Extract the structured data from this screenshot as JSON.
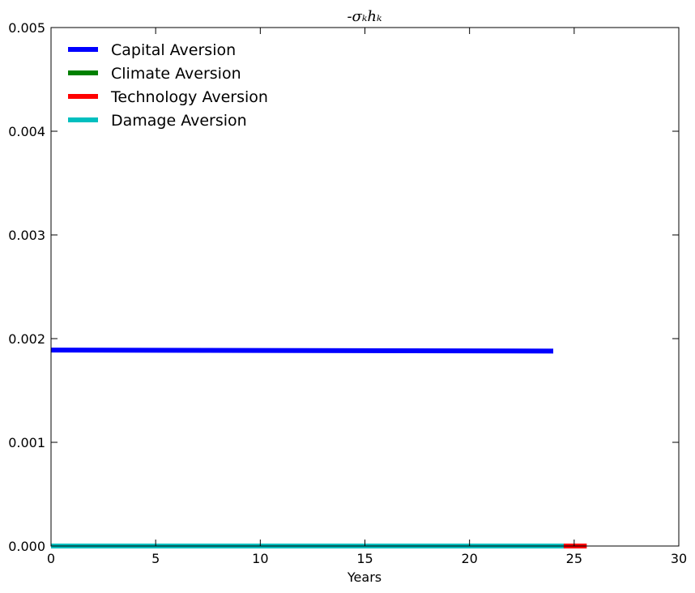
{
  "chart_data": {
    "type": "line",
    "title": "-σₖhₖ",
    "xlabel": "Years",
    "ylabel": "",
    "xlim": [
      0,
      30
    ],
    "ylim": [
      0,
      0.005
    ],
    "xticks": [
      0,
      5,
      10,
      15,
      20,
      25,
      30
    ],
    "yticks": [
      0.0,
      0.001,
      0.002,
      0.003,
      0.004,
      0.005
    ],
    "ytick_labels": [
      "0.000",
      "0.001",
      "0.002",
      "0.003",
      "0.004",
      "0.005"
    ],
    "grid": false,
    "legend_position": "top-left",
    "series": [
      {
        "name": "Capital Aversion",
        "color": "#0000ff",
        "x": [
          0,
          24
        ],
        "y": [
          0.00189,
          0.00188
        ]
      },
      {
        "name": "Climate Aversion",
        "color": "#008000",
        "x": [
          0,
          24.5
        ],
        "y": [
          0.0,
          0.0
        ]
      },
      {
        "name": "Technology Aversion",
        "color": "#ff0000",
        "x": [
          0,
          25.6
        ],
        "y": [
          0.0,
          0.0
        ]
      },
      {
        "name": "Damage Aversion",
        "color": "#00bfbf",
        "x": [
          0,
          24.5
        ],
        "y": [
          0.0,
          0.0
        ]
      }
    ]
  }
}
